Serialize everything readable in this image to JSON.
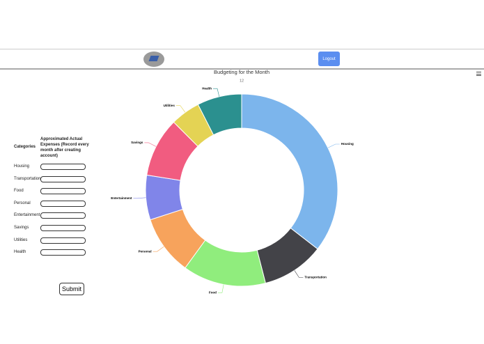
{
  "header": {
    "logout": "Logout"
  },
  "form": {
    "column_headers": [
      "Categories",
      "Approximated Actual Expenses (Record every month after creating account)"
    ],
    "categories": [
      "Housing",
      "Transportation",
      "Food",
      "Personal",
      "Entertainment",
      "Savings",
      "Utilities",
      "Health"
    ],
    "submit": "Submit"
  },
  "chart_data": {
    "type": "donut",
    "title": "Budgeting for the Month",
    "subtitle": "12",
    "categories": [
      "Housing",
      "Transportation",
      "Food",
      "Personal",
      "Entertainment",
      "Savings",
      "Utilities",
      "Health"
    ],
    "values": [
      35.5,
      10.5,
      14,
      10,
      7.5,
      10,
      5,
      7.5
    ],
    "colors": [
      "#7cb5ec",
      "#434348",
      "#90ed7d",
      "#f7a35c",
      "#8085e9",
      "#f15c80",
      "#e4d354",
      "#2b908f"
    ]
  }
}
